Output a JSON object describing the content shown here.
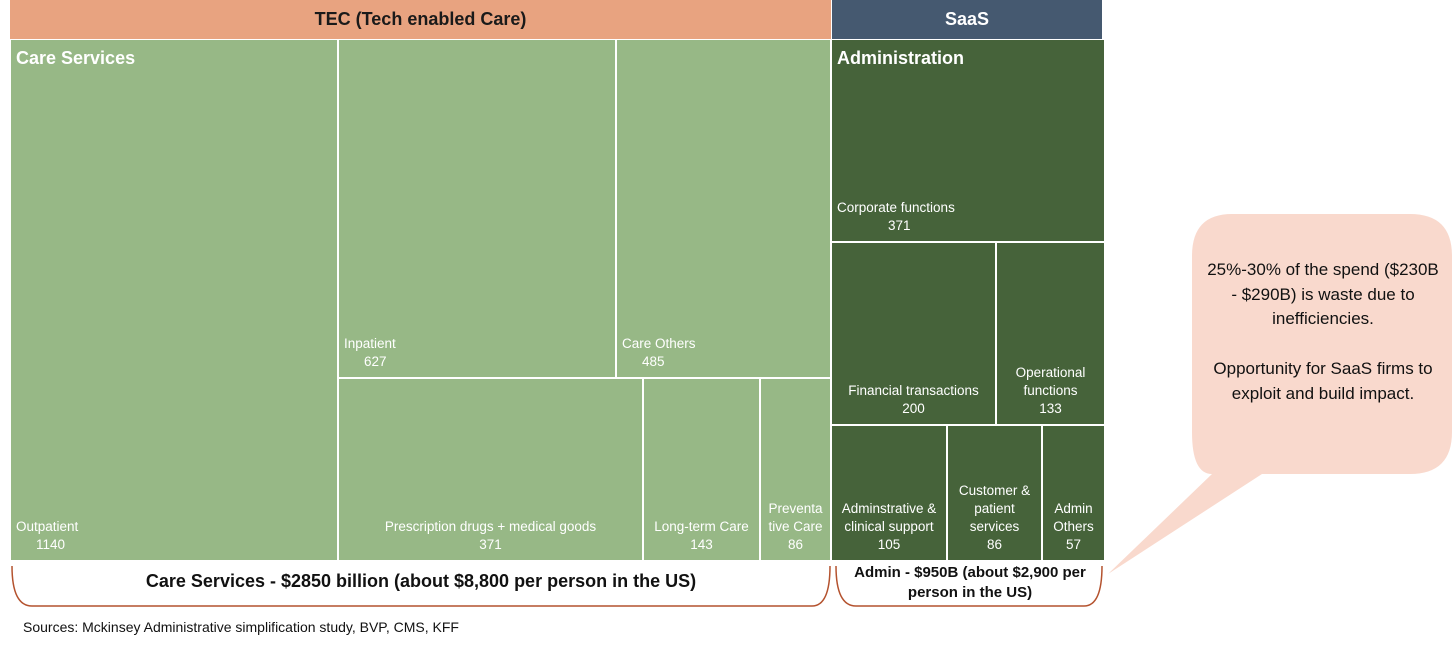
{
  "chart_data": {
    "type": "treemap",
    "unit": "",
    "groups": [
      {
        "header": "TEC (Tech enabled Care)",
        "title": "Care Services",
        "color": "#97b886",
        "header_color": "#e8a380",
        "footer": "Care Services - $2850 billion (about $8,800 per person in the US)",
        "items": [
          {
            "label": "Outpatient",
            "value": 1140
          },
          {
            "label": "Inpatient",
            "value": 627
          },
          {
            "label": "Care Others",
            "value": 485
          },
          {
            "label": "Prescription drugs + medical goods",
            "value": 371
          },
          {
            "label": "Long-term Care",
            "value": 143
          },
          {
            "label": "Preventa tive Care",
            "value": 86
          }
        ]
      },
      {
        "header": "SaaS",
        "title": "Administration",
        "color": "#46633a",
        "header_color": "#455970",
        "footer": "Admin - $950B (about $2,900 per person in the US)",
        "items": [
          {
            "label": "Corporate functions",
            "value": 371
          },
          {
            "label": "Financial transactions",
            "value": 200
          },
          {
            "label": "Operational functions",
            "value": 133
          },
          {
            "label": "Adminstrative & clinical support",
            "value": 105
          },
          {
            "label": "Customer & patient services",
            "value": 86
          },
          {
            "label": "Admin Others",
            "value": 57
          }
        ]
      }
    ],
    "callout": [
      "25%-30% of the spend ($230B - $290B) is waste due to inefficiencies.",
      "Opportunity for SaaS firms to exploit and build impact."
    ],
    "callout_color": "#f9d9cd",
    "brace_color": "#b4522e"
  },
  "source": "Sources: Mckinsey Administrative simplification study, BVP, CMS, KFF"
}
